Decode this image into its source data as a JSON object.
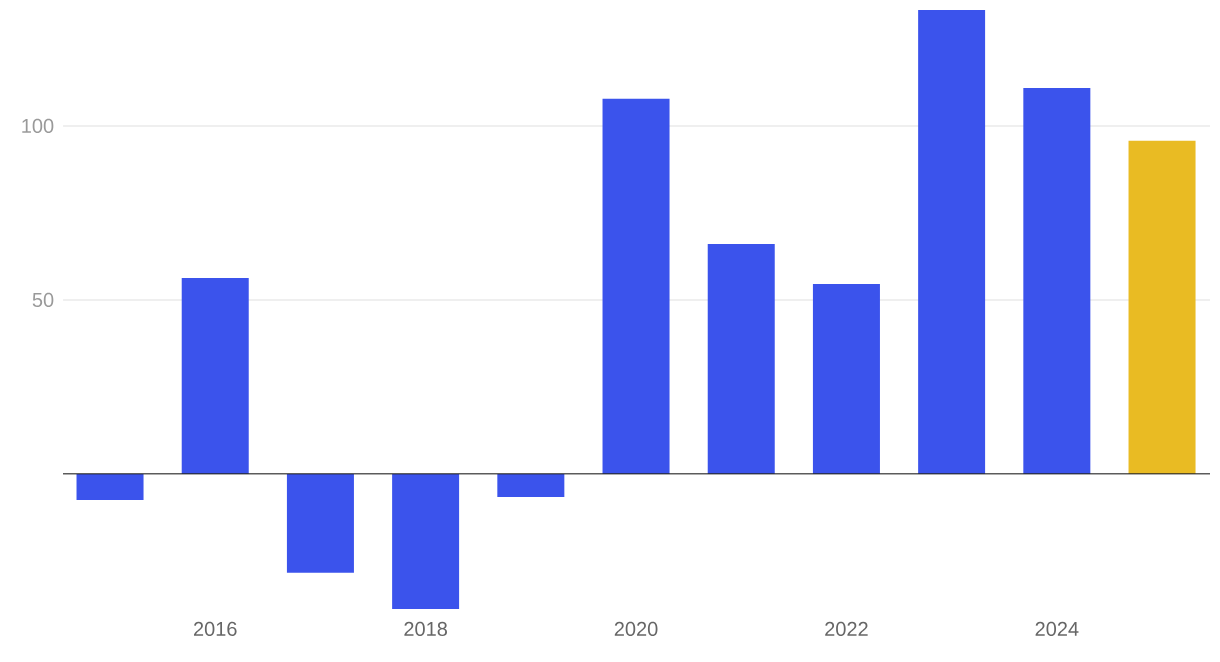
{
  "chart_data": {
    "type": "bar",
    "categories": [
      null,
      "2016",
      null,
      "2018",
      null,
      "2020",
      null,
      "2022",
      null,
      "2024",
      null
    ],
    "values": [
      -7.5,
      56.3,
      -28.4,
      -38.8,
      -6.6,
      107.8,
      66.1,
      54.6,
      133.3,
      110.9,
      95.7
    ],
    "colors": [
      "#3b53ec",
      "#3b53ec",
      "#3b53ec",
      "#3b53ec",
      "#3b53ec",
      "#3b53ec",
      "#3b53ec",
      "#3b53ec",
      "#3b53ec",
      "#3b53ec",
      "#e9bb23"
    ],
    "ylim": [
      -38.8,
      133.3
    ],
    "yticks": [
      50,
      100
    ],
    "grid": "y"
  }
}
